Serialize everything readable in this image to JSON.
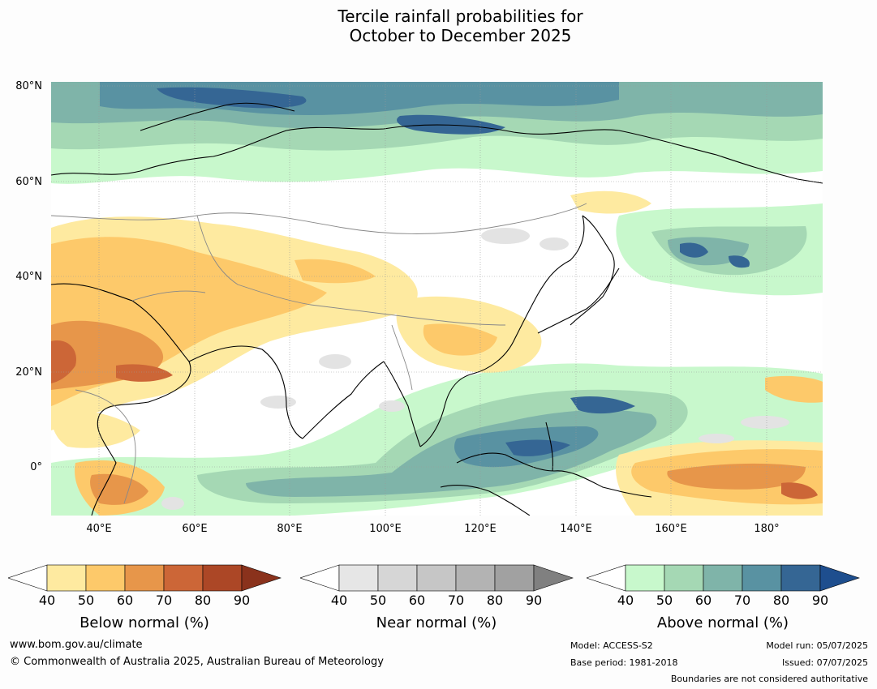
{
  "title": {
    "line1": "Tercile rainfall probabilities for",
    "line2": "October to December 2025"
  },
  "map": {
    "lat_labels": [
      "80°N",
      "60°N",
      "40°N",
      "20°N",
      "0°"
    ],
    "lon_labels": [
      "40°E",
      "60°E",
      "80°E",
      "100°E",
      "120°E",
      "140°E",
      "160°E",
      "180°"
    ]
  },
  "colorbars": [
    {
      "label": "Below normal (%)",
      "ticks": [
        "40",
        "50",
        "60",
        "70",
        "80",
        "90"
      ],
      "colors": [
        "#ffffff",
        "#feeaa0",
        "#fdc96a",
        "#e7964a",
        "#cc6637",
        "#ac4726",
        "#8a321c"
      ]
    },
    {
      "label": "Near normal (%)",
      "ticks": [
        "40",
        "50",
        "60",
        "70",
        "80",
        "90"
      ],
      "colors": [
        "#ffffff",
        "#e6e6e6",
        "#d6d6d6",
        "#c6c6c6",
        "#b3b3b3",
        "#a1a1a1",
        "#808080"
      ]
    },
    {
      "label": "Above normal (%)",
      "ticks": [
        "40",
        "50",
        "60",
        "70",
        "80",
        "90"
      ],
      "colors": [
        "#ffffff",
        "#c8f8cc",
        "#a5d8b4",
        "#7fb4a9",
        "#5992a2",
        "#356694",
        "#1e4e8e"
      ]
    }
  ],
  "footer": {
    "website": "www.bom.gov.au/climate",
    "copyright": "© Commonwealth of Australia 2025, Australian Bureau of Meteorology",
    "model": "Model: ACCESS-S2",
    "base_period": "Base period: 1981-2018",
    "model_run": "Model run: 05/07/2025",
    "issued": "Issued: 07/07/2025",
    "boundaries": "Boundaries are not considered authoritative"
  }
}
